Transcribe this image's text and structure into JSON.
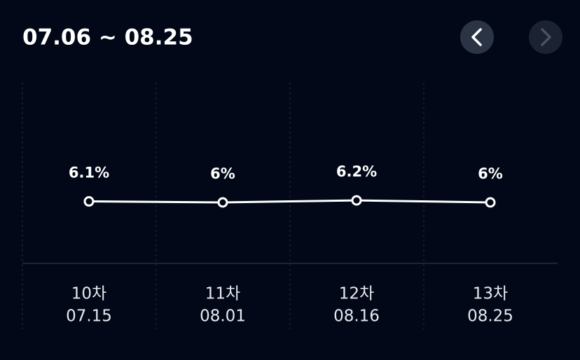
{
  "chart_data": {
    "type": "line",
    "title": "07.06 ~ 08.25",
    "categories": [
      "10차",
      "11차",
      "12차",
      "13차"
    ],
    "dates": [
      "07.15",
      "08.01",
      "08.16",
      "08.25"
    ],
    "values": [
      6.1,
      6,
      6.2,
      6
    ],
    "value_labels": [
      "6.1%",
      "6%",
      "6.2%",
      "6%"
    ],
    "color": "#ffffff",
    "ylim": [
      0,
      18
    ]
  }
}
